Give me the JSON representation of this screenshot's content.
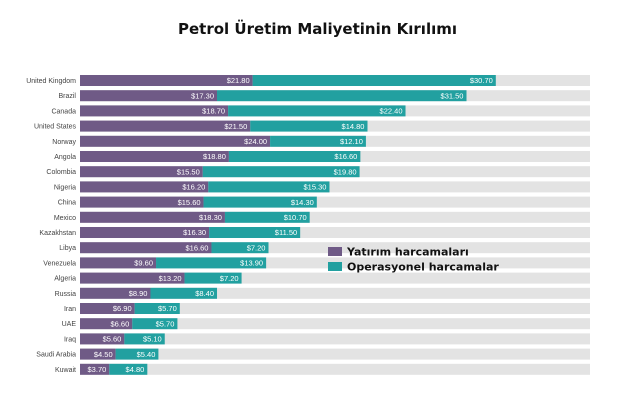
{
  "chart_data": {
    "type": "bar",
    "orientation": "horizontal",
    "stacked": true,
    "title": "Petrol Üretim Maliyetinin Kırılımı",
    "categories": [
      "United Kingdom",
      "Brazil",
      "Canada",
      "United States",
      "Norway",
      "Angola",
      "Colombia",
      "Nigeria",
      "China",
      "Mexico",
      "Kazakhstan",
      "Libya",
      "Venezuela",
      "Algeria",
      "Russia",
      "Iran",
      "UAE",
      "Iraq",
      "Saudi Arabia",
      "Kuwait"
    ],
    "series": [
      {
        "name": "Yatırım harcamaları",
        "color": "#6f5a86",
        "values": [
          21.8,
          17.3,
          18.7,
          21.5,
          24.0,
          18.8,
          15.5,
          16.2,
          15.6,
          18.3,
          16.3,
          16.6,
          9.6,
          13.2,
          8.9,
          6.9,
          6.6,
          5.6,
          4.5,
          3.7
        ],
        "labels": [
          "$21.80",
          "$17.30",
          "$18.70",
          "$21.50",
          "$24.00",
          "$18.80",
          "$15.50",
          "$16.20",
          "$15.60",
          "$18.30",
          "$16.30",
          "$16.60",
          "$9.60",
          "$13.20",
          "$8.90",
          "$6.90",
          "$6.60",
          "$5.60",
          "$4.50",
          "$3.70"
        ]
      },
      {
        "name": "Operasyonel harcamalar",
        "color": "#22a0a0",
        "values": [
          30.7,
          31.5,
          22.4,
          14.8,
          12.1,
          16.6,
          19.8,
          15.3,
          14.3,
          10.7,
          11.5,
          7.2,
          13.9,
          7.2,
          8.4,
          5.7,
          5.7,
          5.1,
          5.4,
          4.8
        ],
        "labels": [
          "$30.70",
          "$31.50",
          "$22.40",
          "$14.80",
          "$12.10",
          "$16.60",
          "$19.80",
          "$15.30",
          "$14.30",
          "$10.70",
          "$11.50",
          "$7.20",
          "$13.90",
          "$7.20",
          "$8.40",
          "$5.70",
          "$5.70",
          "$5.10",
          "$5.40",
          "$4.80"
        ]
      }
    ],
    "track_color": "#e3e3e3",
    "legend_position": "right-middle",
    "grid": false
  }
}
